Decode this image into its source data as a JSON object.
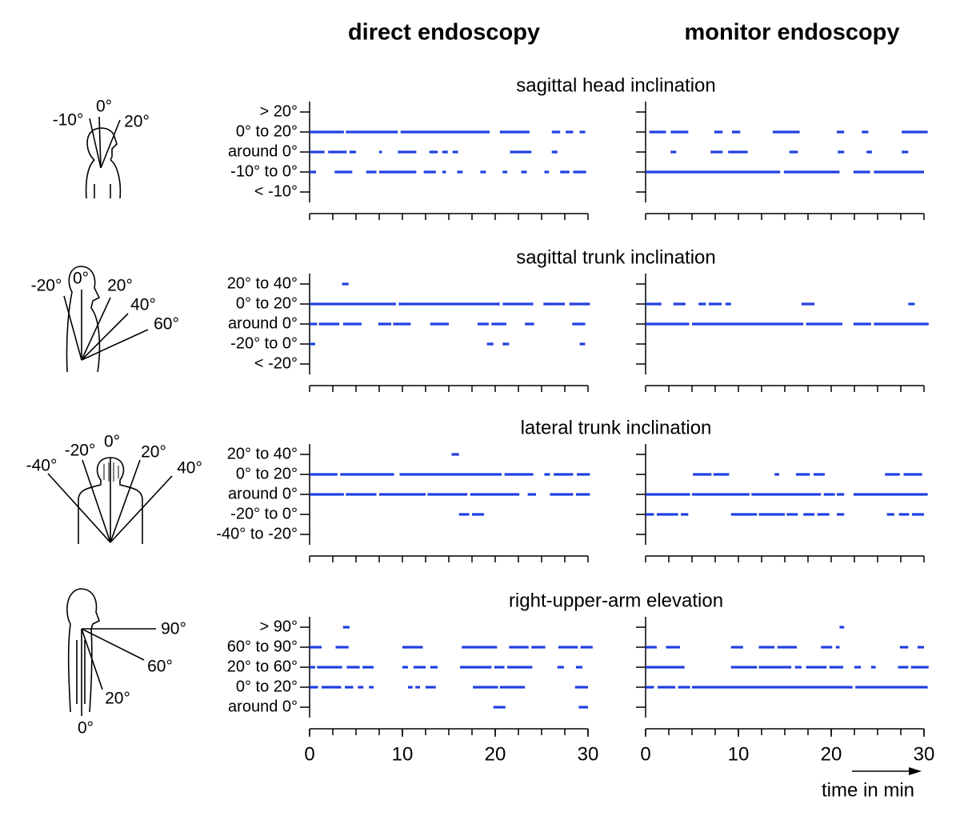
{
  "chart_data": {
    "type": "timeline",
    "panel_titles": [
      "direct endoscopy",
      "monitor endoscopy"
    ],
    "xlabel": "time in min",
    "xlim": [
      0,
      30
    ],
    "xticks": [
      0,
      10,
      20,
      30
    ],
    "xminor": [
      0,
      2.5,
      5,
      7.5,
      10,
      12.5,
      15,
      17.5,
      20,
      22.5,
      25,
      27.5,
      30
    ],
    "color": "#1f3fe0",
    "rows": [
      {
        "title": "sagittal head inclination",
        "angles": [
          "-10°",
          "0°",
          "20°"
        ],
        "categories": [
          "> 20°",
          "0° to 20°",
          "around 0°",
          "-10° to 0°",
          "< -10°"
        ],
        "panels": [
          {
            "segments": [
              [],
              [
                [
                  0,
                  3.7
                ],
                [
                  3.9,
                  9.5
                ],
                [
                  9.8,
                  19.4
                ],
                [
                  20.5,
                  23.7
                ],
                [
                  26.1,
                  27.0
                ],
                [
                  27.6,
                  28.4
                ],
                [
                  29.1,
                  29.7
                ]
              ],
              [
                [
                  0,
                  1.6
                ],
                [
                  2,
                  4
                ],
                [
                  4.3,
                  5
                ],
                [
                  7.5,
                  7.8
                ],
                [
                  9.5,
                  11.5
                ],
                [
                  12.9,
                  13.8
                ],
                [
                  14.3,
                  14.9
                ],
                [
                  15.4,
                  16
                ],
                [
                  21.6,
                  23.9
                ],
                [
                  26.1,
                  26.7
                ]
              ],
              [
                [
                  0,
                  0.7
                ],
                [
                  2.7,
                  4.6
                ],
                [
                  6.1,
                  7.2
                ],
                [
                  7.5,
                  11.5
                ],
                [
                  12.3,
                  13.6
                ],
                [
                  14.3,
                  14.7
                ],
                [
                  15.9,
                  16.5
                ],
                [
                  18.4,
                  19
                ],
                [
                  20.8,
                  21.3
                ],
                [
                  22.8,
                  23.4
                ],
                [
                  25.3,
                  25.8
                ],
                [
                  27,
                  28
                ],
                [
                  28.4,
                  29.8
                ]
              ],
              []
            ]
          },
          {
            "segments": [
              [],
              [
                [
                  0.4,
                  2.2
                ],
                [
                  2.7,
                  4.6
                ],
                [
                  7.4,
                  8.3
                ],
                [
                  9.3,
                  10.2
                ],
                [
                  13.7,
                  16.6
                ],
                [
                  20.6,
                  21.4
                ],
                [
                  23.3,
                  24
                ],
                [
                  27.6,
                  30.4
                ]
              ],
              [
                [
                  2.7,
                  3.3
                ],
                [
                  7,
                  8.3
                ],
                [
                  8.9,
                  11
                ],
                [
                  15.5,
                  16.4
                ],
                [
                  20.7,
                  21.4
                ],
                [
                  23.8,
                  24.4
                ],
                [
                  27.6,
                  28.3
                ]
              ],
              [
                [
                  0,
                  14.5
                ],
                [
                  14.9,
                  20.9
                ],
                [
                  22.4,
                  24.2
                ],
                [
                  24.6,
                  30
                ]
              ],
              []
            ]
          }
        ]
      },
      {
        "title": "sagittal trunk inclination",
        "angles": [
          "-20°",
          "0°",
          "20°",
          "40°",
          "60°"
        ],
        "categories": [
          "20° to 40°",
          "0° to 20°",
          "around 0°",
          "-20° to 0°",
          "< -20°"
        ],
        "panels": [
          {
            "segments": [
              [
                [
                  3.5,
                  4.2
                ]
              ],
              [
                [
                  0,
                  9.3
                ],
                [
                  9.6,
                  20.5
                ],
                [
                  20.8,
                  24.1
                ],
                [
                  25.2,
                  27.5
                ],
                [
                  28,
                  30.2
                ]
              ],
              [
                [
                  0,
                  0.8
                ],
                [
                  1,
                  3.2
                ],
                [
                  3.6,
                  5.6
                ],
                [
                  7.4,
                  8.8
                ],
                [
                  9,
                  10.9
                ],
                [
                  13,
                  15
                ],
                [
                  18.1,
                  19.3
                ],
                [
                  19.6,
                  21.2
                ],
                [
                  23.2,
                  24.2
                ],
                [
                  28.3,
                  29.7
                ]
              ],
              [
                [
                  0,
                  0.6
                ],
                [
                  19.1,
                  19.8
                ],
                [
                  20.8,
                  21.5
                ],
                [
                  29.1,
                  29.7
                ]
              ],
              []
            ]
          },
          {
            "segments": [
              [],
              [
                [
                  0,
                  1.7
                ],
                [
                  3,
                  4.3
                ],
                [
                  5.7,
                  6.5
                ],
                [
                  6.8,
                  8.2
                ],
                [
                  8.6,
                  9.2
                ],
                [
                  16.8,
                  18.2
                ],
                [
                  28.3,
                  29
                ]
              ],
              [
                [
                  0,
                  4.7
                ],
                [
                  5,
                  17
                ],
                [
                  17.3,
                  21.2
                ],
                [
                  22.4,
                  24.3
                ],
                [
                  24.6,
                  30.5
                ]
              ],
              [],
              []
            ]
          }
        ]
      },
      {
        "title": "lateral trunk inclination",
        "angles": [
          "-40°",
          "-20°",
          "0°",
          "20°",
          "40°"
        ],
        "categories": [
          "20° to 40°",
          "0° to 20°",
          "around 0°",
          "-20° to 0°",
          "-40° to -20°"
        ],
        "panels": [
          {
            "segments": [
              [
                [
                  15.3,
                  16.1
                ]
              ],
              [
                [
                  0,
                  3
                ],
                [
                  3.3,
                  9.1
                ],
                [
                  9.7,
                  20.7
                ],
                [
                  21,
                  24.1
                ],
                [
                  25.3,
                  25.9
                ],
                [
                  26.3,
                  28.4
                ],
                [
                  28.8,
                  30.2
                ]
              ],
              [
                [
                  0,
                  3.7
                ],
                [
                  3.9,
                  7.2
                ],
                [
                  7.5,
                  12.5
                ],
                [
                  12.7,
                  17
                ],
                [
                  17.3,
                  22.6
                ],
                [
                  23.5,
                  24.4
                ],
                [
                  25.9,
                  28.4
                ],
                [
                  28.7,
                  30.2
                ]
              ],
              [
                [
                  16.1,
                  17.2
                ],
                [
                  17.5,
                  18.8
                ]
              ],
              []
            ]
          },
          {
            "segments": [
              [],
              [
                [
                  5.1,
                  7.1
                ],
                [
                  7.3,
                  9
                ],
                [
                  13.9,
                  14.4
                ],
                [
                  16.2,
                  17.7
                ],
                [
                  18.1,
                  19.3
                ],
                [
                  25.8,
                  27.4
                ],
                [
                  27.8,
                  29.8
                ]
              ],
              [
                [
                  0,
                  4.8
                ],
                [
                  5,
                  11.2
                ],
                [
                  11.4,
                  18.9
                ],
                [
                  19.2,
                  20.4
                ],
                [
                  20.6,
                  21.4
                ],
                [
                  22.4,
                  30.4
                ]
              ],
              [
                [
                  0,
                  0.9
                ],
                [
                  1.2,
                  3.5
                ],
                [
                  3.8,
                  4.6
                ],
                [
                  9.2,
                  12
                ],
                [
                  12.2,
                  15
                ],
                [
                  15.2,
                  16.4
                ],
                [
                  17,
                  18.2
                ],
                [
                  18.5,
                  19.8
                ],
                [
                  20.6,
                  21.4
                ],
                [
                  26,
                  26.8
                ],
                [
                  27.3,
                  28.4
                ],
                [
                  28.7,
                  30
                ]
              ],
              []
            ]
          }
        ]
      },
      {
        "title": "right-upper-arm elevation",
        "angles": [
          "90°",
          "60°",
          "20°",
          "0°"
        ],
        "categories": [
          "> 90°",
          "60° to 90°",
          "20° to 60°",
          "0° to 20°",
          "around 0°"
        ],
        "panels": [
          {
            "segments": [
              [
                [
                  3.6,
                  4.3
                ]
              ],
              [
                [
                  0,
                  1.3
                ],
                [
                  2.8,
                  4.2
                ],
                [
                  10,
                  12.2
                ],
                [
                  16.4,
                  20.2
                ],
                [
                  21.5,
                  23.6
                ],
                [
                  23.9,
                  25.4
                ],
                [
                  26.8,
                  28.9
                ],
                [
                  29.2,
                  30.5
                ]
              ],
              [
                [
                  0,
                  0.6
                ],
                [
                  0.8,
                  3.5
                ],
                [
                  4,
                  5.4
                ],
                [
                  5.7,
                  6.9
                ],
                [
                  10,
                  10.6
                ],
                [
                  11.2,
                  12.5
                ],
                [
                  13,
                  13.8
                ],
                [
                  16.2,
                  19.6
                ],
                [
                  19.9,
                  21
                ],
                [
                  21.3,
                  24
                ],
                [
                  26.7,
                  27.4
                ],
                [
                  28.7,
                  29.4
                ]
              ],
              [
                [
                  0,
                  0.9
                ],
                [
                  1.3,
                  3.4
                ],
                [
                  3.8,
                  4.7
                ],
                [
                  5.2,
                  5.8
                ],
                [
                  6.4,
                  6.9
                ],
                [
                  10.6,
                  11.1
                ],
                [
                  11.4,
                  11.9
                ],
                [
                  12.5,
                  13.6
                ],
                [
                  17.6,
                  20.3
                ],
                [
                  20.5,
                  23.2
                ],
                [
                  28.6,
                  30
                ]
              ],
              [
                [
                  19.8,
                  21.1
                ],
                [
                  29,
                  30
                ]
              ]
            ]
          },
          {
            "segments": [
              [
                [
                  20.9,
                  21.4
                ]
              ],
              [
                [
                  0,
                  1.2
                ],
                [
                  2.2,
                  3.7
                ],
                [
                  9.2,
                  10.5
                ],
                [
                  12.2,
                  13.9
                ],
                [
                  14.2,
                  16.3
                ],
                [
                  18.9,
                  20.1
                ],
                [
                  20.5,
                  20.9
                ],
                [
                  27.4,
                  28.3
                ],
                [
                  29.3,
                  30
                ]
              ],
              [
                [
                  0,
                  4.2
                ],
                [
                  9.2,
                  12
                ],
                [
                  12.2,
                  15.7
                ],
                [
                  16.1,
                  16.8
                ],
                [
                  17.3,
                  19.5
                ],
                [
                  19.8,
                  21.3
                ],
                [
                  22.5,
                  23.2
                ],
                [
                  24.3,
                  24.8
                ],
                [
                  27.2,
                  28.3
                ],
                [
                  28.6,
                  30.5
                ]
              ],
              [
                [
                  0,
                  0.9
                ],
                [
                  1.3,
                  3.2
                ],
                [
                  3.5,
                  4.8
                ],
                [
                  5,
                  22.3
                ],
                [
                  22.6,
                  30.4
                ]
              ],
              []
            ]
          }
        ]
      }
    ]
  }
}
